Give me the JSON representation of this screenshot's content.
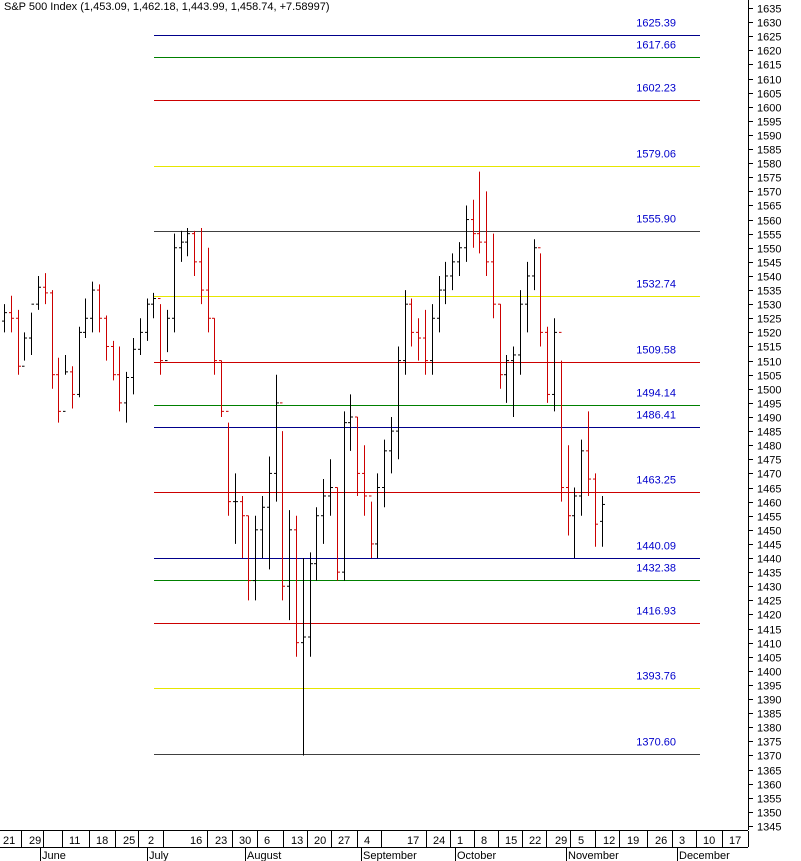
{
  "title": "S&P 500 Index (1,453.09, 1,462.18, 1,443.99, 1,458.74, +7.58997)",
  "chart_data": {
    "type": "ohlc",
    "title": "S&P 500 Index (1,453.09, 1,462.18, 1,443.99, 1,458.74, +7.58997)",
    "y_axis": {
      "position": "right",
      "min": 1345,
      "max": 1635,
      "step": 5
    },
    "x_axis": {
      "day_ticks": [
        "21",
        "29",
        "11",
        "18",
        "25",
        "2",
        "16",
        "23",
        "30",
        "6",
        "13",
        "20",
        "27",
        "4",
        "17",
        "24",
        "1",
        "8",
        "15",
        "22",
        "29",
        "5",
        "12",
        "19",
        "26",
        "3",
        "10",
        "17"
      ],
      "month_labels": [
        "June",
        "July",
        "August",
        "September",
        "October",
        "November",
        "December"
      ]
    },
    "levels": [
      {
        "value": 1625.39,
        "label": "1625.39",
        "color": "#00008b"
      },
      {
        "value": 1617.66,
        "label": "1617.66",
        "color": "#008000"
      },
      {
        "value": 1602.23,
        "label": "1602.23",
        "color": "#cc0000"
      },
      {
        "value": 1579.06,
        "label": "1579.06",
        "color": "#e6e600"
      },
      {
        "value": 1555.9,
        "label": "1555.90",
        "color": "#404040"
      },
      {
        "value": 1532.74,
        "label": "1532.74",
        "color": "#e6e600"
      },
      {
        "value": 1509.58,
        "label": "1509.58",
        "color": "#cc0000"
      },
      {
        "value": 1494.14,
        "label": "1494.14",
        "color": "#008000"
      },
      {
        "value": 1486.41,
        "label": "1486.41",
        "color": "#00008b"
      },
      {
        "value": 1463.25,
        "label": "1463.25",
        "color": "#cc0000"
      },
      {
        "value": 1440.09,
        "label": "1440.09",
        "color": "#00008b"
      },
      {
        "value": 1432.38,
        "label": "1432.38",
        "color": "#008000"
      },
      {
        "value": 1416.93,
        "label": "1416.93",
        "color": "#cc0000"
      },
      {
        "value": 1393.76,
        "label": "1393.76",
        "color": "#e6e600"
      },
      {
        "value": 1370.6,
        "label": "1370.60",
        "color": "#404040"
      }
    ],
    "label_color": "#0000cc",
    "up_color": "#000000",
    "down_color": "#cc0000",
    "bars": [
      [
        1530,
        1524,
        1520,
        1527
      ],
      [
        1533,
        1527,
        1520,
        1525
      ],
      [
        1528,
        1525,
        1505,
        1508
      ],
      [
        1520,
        1508,
        1510,
        1518
      ],
      [
        1527,
        1518,
        1512,
        1530
      ],
      [
        1540,
        1530,
        1528,
        1536
      ],
      [
        1541,
        1536,
        1530,
        1534
      ],
      [
        1535,
        1534,
        1500,
        1505
      ],
      [
        1511,
        1505,
        1488,
        1492
      ],
      [
        1512,
        1492,
        1505,
        1506
      ],
      [
        1508,
        1506,
        1493,
        1498
      ],
      [
        1522,
        1498,
        1497,
        1520
      ],
      [
        1532,
        1520,
        1518,
        1525
      ],
      [
        1538,
        1525,
        1520,
        1535
      ],
      [
        1537,
        1535,
        1520,
        1525
      ],
      [
        1526,
        1525,
        1510,
        1515
      ],
      [
        1517,
        1515,
        1503,
        1505
      ],
      [
        1515,
        1505,
        1492,
        1495
      ],
      [
        1506,
        1495,
        1488,
        1504
      ],
      [
        1518,
        1504,
        1498,
        1514
      ],
      [
        1525,
        1514,
        1512,
        1520
      ],
      [
        1532,
        1520,
        1517,
        1530
      ],
      [
        1534,
        1530,
        1525,
        1532
      ],
      [
        1530,
        1532,
        1505,
        1510
      ],
      [
        1528,
        1510,
        1513,
        1525
      ],
      [
        1555,
        1525,
        1520,
        1550
      ],
      [
        1556,
        1550,
        1545,
        1552
      ],
      [
        1557,
        1552,
        1547,
        1555
      ],
      [
        1556,
        1555,
        1540,
        1545
      ],
      [
        1557,
        1545,
        1530,
        1535
      ],
      [
        1550,
        1535,
        1520,
        1525
      ],
      [
        1525,
        1525,
        1505,
        1510
      ],
      [
        1510,
        1510,
        1490,
        1492
      ],
      [
        1488,
        1492,
        1455,
        1460
      ],
      [
        1470,
        1460,
        1445,
        1460
      ],
      [
        1462,
        1460,
        1440,
        1455
      ],
      [
        1455,
        1455,
        1425,
        1432
      ],
      [
        1455,
        1432,
        1425,
        1450
      ],
      [
        1462,
        1450,
        1440,
        1458
      ],
      [
        1476,
        1458,
        1436,
        1470
      ],
      [
        1505,
        1470,
        1460,
        1495
      ],
      [
        1485,
        1495,
        1425,
        1430
      ],
      [
        1457,
        1430,
        1418,
        1450
      ],
      [
        1455,
        1450,
        1405,
        1410
      ],
      [
        1440,
        1410,
        1370,
        1412
      ],
      [
        1442,
        1412,
        1405,
        1438
      ],
      [
        1458,
        1438,
        1432,
        1455
      ],
      [
        1468,
        1455,
        1445,
        1462
      ],
      [
        1475,
        1462,
        1455,
        1465
      ],
      [
        1465,
        1465,
        1432,
        1435
      ],
      [
        1492,
        1435,
        1432,
        1488
      ],
      [
        1498,
        1488,
        1478,
        1490
      ],
      [
        1490,
        1490,
        1462,
        1470
      ],
      [
        1480,
        1470,
        1455,
        1462
      ],
      [
        1460,
        1462,
        1440,
        1445
      ],
      [
        1470,
        1445,
        1440,
        1465
      ],
      [
        1482,
        1465,
        1458,
        1478
      ],
      [
        1490,
        1478,
        1470,
        1485
      ],
      [
        1515,
        1485,
        1475,
        1510
      ],
      [
        1535,
        1510,
        1505,
        1530
      ],
      [
        1532,
        1530,
        1515,
        1520
      ],
      [
        1525,
        1520,
        1510,
        1518
      ],
      [
        1528,
        1518,
        1505,
        1510
      ],
      [
        1530,
        1510,
        1505,
        1525
      ],
      [
        1540,
        1525,
        1520,
        1535
      ],
      [
        1545,
        1535,
        1530,
        1540
      ],
      [
        1548,
        1540,
        1535,
        1545
      ],
      [
        1552,
        1545,
        1540,
        1550
      ],
      [
        1565,
        1550,
        1545,
        1560
      ],
      [
        1567,
        1560,
        1550,
        1555
      ],
      [
        1577,
        1555,
        1548,
        1552
      ],
      [
        1570,
        1552,
        1540,
        1545
      ],
      [
        1555,
        1545,
        1525,
        1530
      ],
      [
        1530,
        1530,
        1500,
        1505
      ],
      [
        1512,
        1505,
        1495,
        1510
      ],
      [
        1515,
        1510,
        1490,
        1512
      ],
      [
        1535,
        1512,
        1505,
        1530
      ],
      [
        1545,
        1530,
        1520,
        1540
      ],
      [
        1553,
        1540,
        1535,
        1550
      ],
      [
        1548,
        1550,
        1515,
        1520
      ],
      [
        1522,
        1520,
        1495,
        1498
      ],
      [
        1525,
        1498,
        1492,
        1520
      ],
      [
        1510,
        1520,
        1460,
        1465
      ],
      [
        1480,
        1465,
        1448,
        1455
      ],
      [
        1465,
        1455,
        1440,
        1462
      ],
      [
        1482,
        1462,
        1455,
        1478
      ],
      [
        1492,
        1478,
        1462,
        1468
      ],
      [
        1470,
        1468,
        1444,
        1452
      ],
      [
        1462,
        1453,
        1444,
        1459
      ]
    ]
  }
}
